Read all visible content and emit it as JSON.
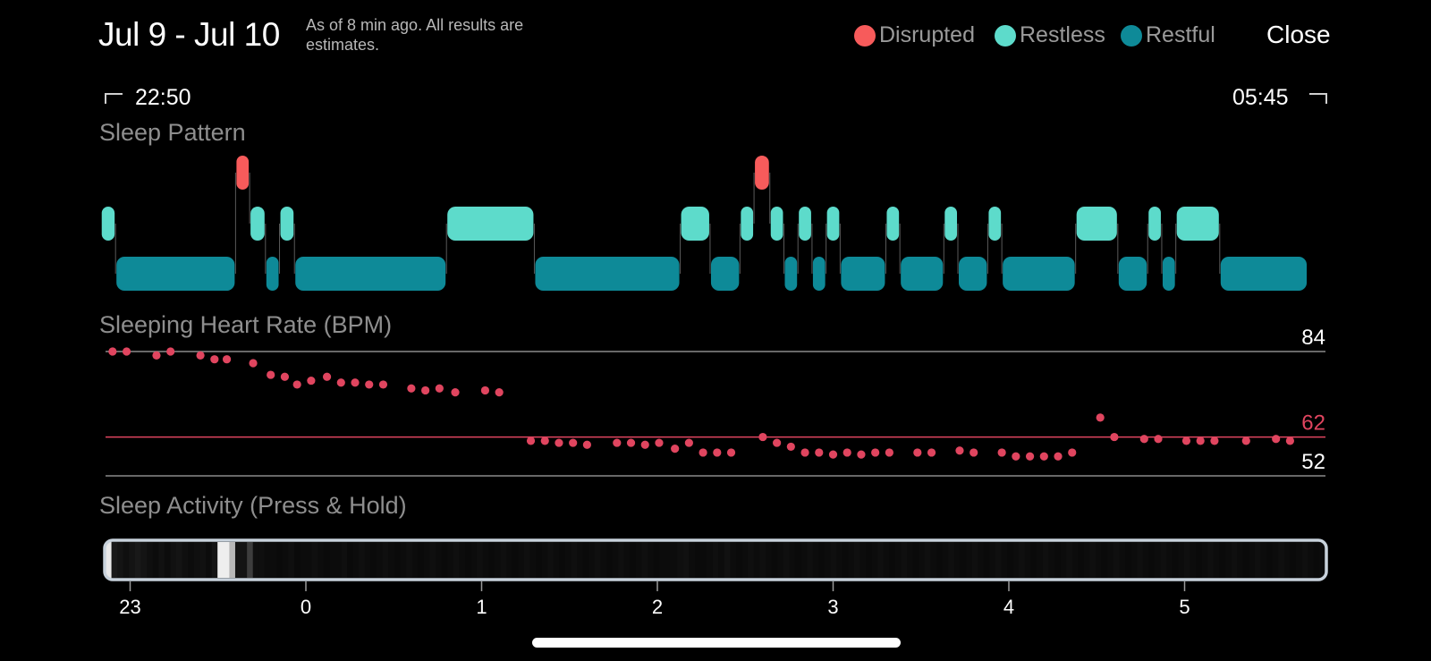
{
  "header": {
    "date_range": "Jul 9 - Jul 10",
    "as_of": "As of 8 min ago. All results are estimates.",
    "close_label": "Close"
  },
  "legend": [
    {
      "label": "Disrupted",
      "color": "#f75b5b"
    },
    {
      "label": "Restless",
      "color": "#5ddbcb"
    },
    {
      "label": "Restful",
      "color": "#0e8a98"
    }
  ],
  "time_range": {
    "start": "22:50",
    "end": "05:45"
  },
  "sleep_pattern": {
    "title": "Sleep Pattern",
    "stage_colors": {
      "disrupted": "#f75b5b",
      "restless": "#5ddbcb",
      "restful": "#0e8a98"
    },
    "timeline_start_hour": -1.1667,
    "timeline_end_hour": 5.75,
    "segments": [
      {
        "stage": "restless",
        "start": -1.1667,
        "end": -1.083
      },
      {
        "stage": "restful",
        "start": -1.083,
        "end": -0.4
      },
      {
        "stage": "disrupted",
        "start": -0.4,
        "end": -0.32
      },
      {
        "stage": "restless",
        "start": -0.32,
        "end": -0.23
      },
      {
        "stage": "restful",
        "start": -0.23,
        "end": -0.15
      },
      {
        "stage": "restless",
        "start": -0.15,
        "end": -0.065
      },
      {
        "stage": "restful",
        "start": -0.065,
        "end": 0.8
      },
      {
        "stage": "restless",
        "start": 0.8,
        "end": 1.3
      },
      {
        "stage": "restful",
        "start": 1.3,
        "end": 2.13
      },
      {
        "stage": "restless",
        "start": 2.13,
        "end": 2.3
      },
      {
        "stage": "restful",
        "start": 2.3,
        "end": 2.47
      },
      {
        "stage": "restless",
        "start": 2.47,
        "end": 2.55
      },
      {
        "stage": "disrupted",
        "start": 2.55,
        "end": 2.64
      },
      {
        "stage": "restless",
        "start": 2.64,
        "end": 2.72
      },
      {
        "stage": "restful",
        "start": 2.72,
        "end": 2.8
      },
      {
        "stage": "restless",
        "start": 2.8,
        "end": 2.88
      },
      {
        "stage": "restful",
        "start": 2.88,
        "end": 2.96
      },
      {
        "stage": "restless",
        "start": 2.96,
        "end": 3.04
      },
      {
        "stage": "restful",
        "start": 3.04,
        "end": 3.3
      },
      {
        "stage": "restless",
        "start": 3.3,
        "end": 3.38
      },
      {
        "stage": "restful",
        "start": 3.38,
        "end": 3.63
      },
      {
        "stage": "restless",
        "start": 3.63,
        "end": 3.71
      },
      {
        "stage": "restful",
        "start": 3.71,
        "end": 3.88
      },
      {
        "stage": "restless",
        "start": 3.88,
        "end": 3.96
      },
      {
        "stage": "restful",
        "start": 3.96,
        "end": 4.38
      },
      {
        "stage": "restless",
        "start": 4.38,
        "end": 4.62
      },
      {
        "stage": "restful",
        "start": 4.62,
        "end": 4.79
      },
      {
        "stage": "restless",
        "start": 4.79,
        "end": 4.87
      },
      {
        "stage": "restful",
        "start": 4.87,
        "end": 4.95
      },
      {
        "stage": "restless",
        "start": 4.95,
        "end": 5.2
      },
      {
        "stage": "restful",
        "start": 5.2,
        "end": 5.7
      }
    ]
  },
  "chart_data": {
    "type": "scatter",
    "title": "Sleeping Heart Rate (BPM)",
    "ylim": [
      52,
      84
    ],
    "reference_lines": [
      {
        "value": 84,
        "label": "84",
        "color": "#8a8a8a",
        "label_color": "#ffffff"
      },
      {
        "value": 62,
        "label": "62",
        "color": "#e0455f",
        "label_color": "#e0455f"
      },
      {
        "value": 52,
        "label": "52",
        "color": "#8a8a8a",
        "label_color": "#ffffff"
      }
    ],
    "point_color": "#e0455f",
    "x": [
      -1.1,
      -1.02,
      -0.85,
      -0.77,
      -0.6,
      -0.52,
      -0.45,
      -0.3,
      -0.2,
      -0.12,
      -0.05,
      0.03,
      0.12,
      0.2,
      0.28,
      0.36,
      0.44,
      0.6,
      0.68,
      0.76,
      0.85,
      1.02,
      1.1,
      1.28,
      1.36,
      1.44,
      1.52,
      1.6,
      1.77,
      1.85,
      1.93,
      2.01,
      2.1,
      2.18,
      2.26,
      2.34,
      2.42,
      2.6,
      2.68,
      2.76,
      2.84,
      2.92,
      3.0,
      3.08,
      3.16,
      3.24,
      3.32,
      3.48,
      3.56,
      3.72,
      3.8,
      3.96,
      4.04,
      4.12,
      4.2,
      4.28,
      4.36,
      4.52,
      4.6,
      4.77,
      4.85,
      5.01,
      5.09,
      5.17,
      5.35,
      5.52,
      5.6
    ],
    "y": [
      84,
      84,
      83,
      84,
      83,
      82,
      82,
      81,
      78,
      77.5,
      75.5,
      76.5,
      77.5,
      76,
      76,
      75.5,
      75.5,
      74.5,
      74,
      74.5,
      73.5,
      74,
      73.5,
      61,
      61,
      60.5,
      60.5,
      60,
      60.5,
      60.5,
      60,
      60.5,
      59,
      60.5,
      58,
      58,
      58,
      62,
      60.5,
      59.5,
      58,
      58,
      57.5,
      58,
      57.5,
      58,
      58,
      58,
      58,
      58.5,
      58,
      58,
      57,
      57,
      57,
      57,
      58,
      67,
      62,
      61.5,
      61.5,
      61,
      61,
      61,
      61,
      61.5,
      61
    ]
  },
  "sleep_activity": {
    "title": "Sleep Activity (Press & Hold)",
    "border_color": "#c8d2dc",
    "intensity": [
      0.95,
      0.1,
      0.08,
      0.06,
      0.08,
      0.1,
      0.08,
      0.06,
      0.05,
      0.07,
      0.05,
      0.07,
      0.08,
      0.06,
      0.05,
      0.06,
      0.07,
      0.05,
      0.08,
      0.97,
      0.97,
      0.75,
      0.08,
      0.08,
      0.25,
      0.06,
      0.06,
      0.05,
      0.05,
      0.04,
      0.05,
      0.06,
      0.04,
      0.05,
      0.05,
      0.06,
      0.05,
      0.04,
      0.05,
      0.05,
      0.06,
      0.04,
      0.05,
      0.06,
      0.05,
      0.04,
      0.05,
      0.06,
      0.05,
      0.04,
      0.05,
      0.06,
      0.05,
      0.04,
      0.05,
      0.06,
      0.05,
      0.04,
      0.05,
      0.06,
      0.05,
      0.04,
      0.05,
      0.06,
      0.05,
      0.04,
      0.05,
      0.06,
      0.05,
      0.04,
      0.05,
      0.06,
      0.05,
      0.04,
      0.05,
      0.06,
      0.05,
      0.04,
      0.05,
      0.06,
      0.05,
      0.04,
      0.05,
      0.06,
      0.05,
      0.04,
      0.05,
      0.06,
      0.05,
      0.04,
      0.05,
      0.06,
      0.05,
      0.04,
      0.05,
      0.05,
      0.05,
      0.06,
      0.07,
      0.05,
      0.04,
      0.04,
      0.05,
      0.06,
      0.05,
      0.07,
      0.05,
      0.04,
      0.05,
      0.06,
      0.05,
      0.06,
      0.05,
      0.04,
      0.05,
      0.06,
      0.05,
      0.04,
      0.05,
      0.06,
      0.05,
      0.04,
      0.05,
      0.06,
      0.05,
      0.04,
      0.05,
      0.06,
      0.05,
      0.04,
      0.05,
      0.06,
      0.05,
      0.04,
      0.05,
      0.06,
      0.05,
      0.04,
      0.05,
      0.06,
      0.05,
      0.04,
      0.05,
      0.06,
      0.05,
      0.04,
      0.05,
      0.06,
      0.05,
      0.04,
      0.05,
      0.06,
      0.05,
      0.04,
      0.05,
      0.06,
      0.05,
      0.04,
      0.05,
      0.06,
      0.05,
      0.04,
      0.05,
      0.06,
      0.05,
      0.04,
      0.05,
      0.06,
      0.05,
      0.04,
      0.05,
      0.06,
      0.05,
      0.04,
      0.05,
      0.06,
      0.05,
      0.04,
      0.05,
      0.06,
      0.05,
      0.04,
      0.05,
      0.06,
      0.05,
      0.04,
      0.05,
      0.06,
      0.05,
      0.04,
      0.05,
      0.06,
      0.05,
      0.04,
      0.05,
      0.06,
      0.05,
      0.04,
      0.05,
      0.06,
      0.05,
      0.04,
      0.05,
      0.06,
      0.05,
      0.04,
      0.05
    ],
    "x_ticks": [
      "23",
      "0",
      "1",
      "2",
      "3",
      "4",
      "5"
    ]
  }
}
